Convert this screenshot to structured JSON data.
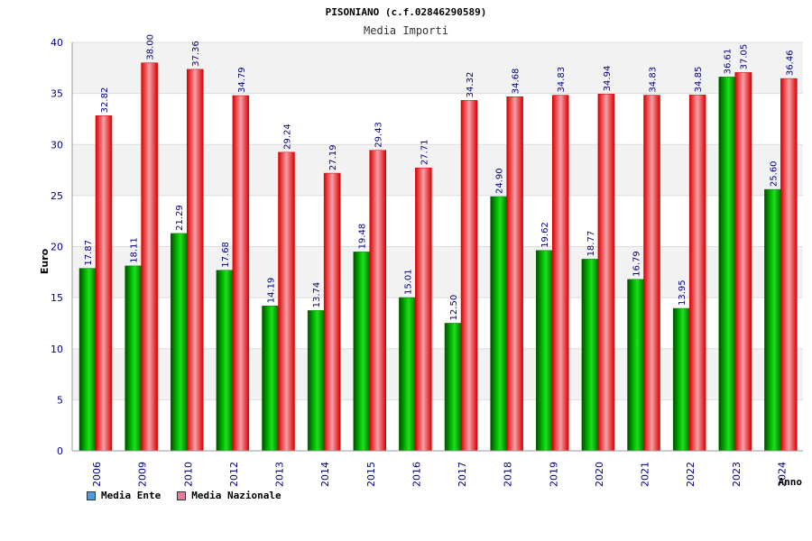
{
  "chart_data": {
    "type": "bar",
    "title": "PISONIANO (c.f.02846290589)",
    "subtitle": "Media Importi",
    "ylabel": "Euro",
    "xlabel": "Anno",
    "ylim": [
      0,
      40
    ],
    "yticks": [
      "0",
      "5",
      "10",
      "15",
      "20",
      "25",
      "30",
      "35",
      "40"
    ],
    "categories": [
      "2006",
      "2009",
      "2010",
      "2012",
      "2013",
      "2014",
      "2015",
      "2016",
      "2017",
      "2018",
      "2019",
      "2020",
      "2021",
      "2022",
      "2023",
      "2024"
    ],
    "series": [
      {
        "name": "Media Ente",
        "color": "#4a9be0",
        "bar_color": "#00aa00",
        "values": [
          17.87,
          18.11,
          21.29,
          17.68,
          14.19,
          13.74,
          19.48,
          15.01,
          12.5,
          24.9,
          19.62,
          18.77,
          16.79,
          13.95,
          36.61,
          25.6
        ],
        "labels": [
          "17.87",
          "18.11",
          "21.29",
          "17.68",
          "14.19",
          "13.74",
          "19.48",
          "15.01",
          "12.50",
          "24.90",
          "19.62",
          "18.77",
          "16.79",
          "13.95",
          "36.61",
          "25.60"
        ]
      },
      {
        "name": "Media Nazionale",
        "color": "#e07aa0",
        "bar_color": "#ee1c24",
        "values": [
          32.82,
          38.0,
          37.36,
          34.79,
          29.24,
          27.19,
          29.43,
          27.71,
          34.32,
          34.68,
          34.83,
          34.94,
          34.83,
          34.85,
          37.05,
          36.46
        ],
        "labels": [
          "32.82",
          "38.00",
          "37.36",
          "34.79",
          "29.24",
          "27.19",
          "29.43",
          "27.71",
          "34.32",
          "34.68",
          "34.83",
          "34.94",
          "34.83",
          "34.85",
          "37.05",
          "36.46"
        ]
      }
    ],
    "grid": true,
    "legend_position": "bottom-left"
  }
}
